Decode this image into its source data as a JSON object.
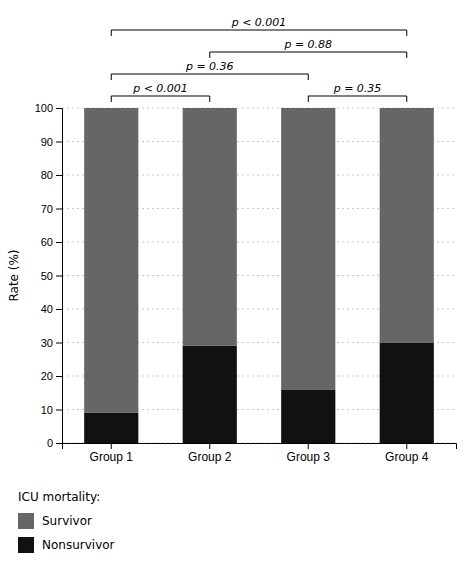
{
  "chart_data": {
    "type": "bar",
    "stacked": true,
    "grid": true,
    "ylabel": "Rate (%)",
    "categories": [
      "Group 1",
      "Group 2",
      "Group 3",
      "Group 4"
    ],
    "series": [
      {
        "name": "Nonsurvivor",
        "color": "#111111",
        "values": [
          9,
          29,
          16,
          30
        ]
      },
      {
        "name": "Survivor",
        "color": "#666666",
        "values": [
          91,
          71,
          84,
          70
        ]
      }
    ],
    "ylim": [
      0,
      100
    ],
    "yticks": [
      0,
      10,
      20,
      30,
      40,
      50,
      60,
      70,
      80,
      90,
      100
    ],
    "legend_title": "ICU mortality:",
    "annotations": [
      {
        "text": "p < 0.001",
        "from": "Group 1",
        "to": "Group 2"
      },
      {
        "text": "p = 0.35",
        "from": "Group 3",
        "to": "Group 4"
      },
      {
        "text": "p = 0.36",
        "from": "Group 1",
        "to": "Group 3"
      },
      {
        "text": "p < 0.001",
        "from": "Group 1",
        "to": "Group 4"
      },
      {
        "text": "p = 0.88",
        "from": "Group 2",
        "to": "Group 4"
      }
    ]
  }
}
